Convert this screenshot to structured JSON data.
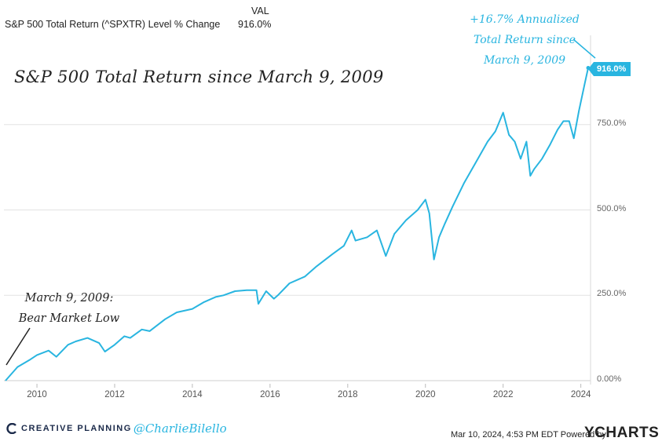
{
  "legend": {
    "series_name": "S&P 500 Total Return (^SPXTR) Level % Change",
    "column_header": "VAL",
    "value": "916.0%"
  },
  "title": "S&P 500 Total Return since March 9, 2009",
  "annotations": {
    "annualized": [
      "+16.7% Annualized",
      "Total Return since",
      "March 9, 2009"
    ],
    "bear_low": [
      "March 9, 2009:",
      "Bear Market Low"
    ]
  },
  "badge": "916.0%",
  "brand": {
    "name": "CREATIVE PLANNING",
    "handle": "@CharlieBilello"
  },
  "footer": {
    "timestamp": "Mar 10, 2024, 4:53 PM EDT Powered by",
    "logo": "YCHARTS"
  },
  "colors": {
    "line": "#29b5e0",
    "text": "#222222",
    "grid": "#e3e3e3"
  },
  "chart_data": {
    "type": "line",
    "series": [
      {
        "name": "S&P 500 Total Return (^SPXTR) Level % Change",
        "x": [
          2009.19,
          2009.5,
          2009.8,
          2010.0,
          2010.3,
          2010.5,
          2010.8,
          2011.0,
          2011.3,
          2011.6,
          2011.75,
          2012.0,
          2012.25,
          2012.4,
          2012.7,
          2012.9,
          2013.3,
          2013.6,
          2014.0,
          2014.3,
          2014.6,
          2014.8,
          2015.1,
          2015.4,
          2015.65,
          2015.7,
          2015.9,
          2016.1,
          2016.2,
          2016.5,
          2016.9,
          2017.2,
          2017.6,
          2017.9,
          2018.1,
          2018.2,
          2018.5,
          2018.75,
          2018.98,
          2019.2,
          2019.5,
          2019.8,
          2020.0,
          2020.1,
          2020.22,
          2020.35,
          2020.5,
          2020.7,
          2021.0,
          2021.3,
          2021.6,
          2021.8,
          2022.0,
          2022.15,
          2022.3,
          2022.45,
          2022.6,
          2022.7,
          2022.8,
          2023.0,
          2023.2,
          2023.4,
          2023.55,
          2023.7,
          2023.82,
          2023.95,
          2024.1,
          2024.19
        ],
        "y": [
          0,
          40,
          60,
          75,
          88,
          70,
          105,
          115,
          125,
          110,
          85,
          105,
          130,
          125,
          150,
          145,
          180,
          200,
          210,
          230,
          245,
          250,
          262,
          265,
          265,
          225,
          262,
          240,
          250,
          285,
          305,
          335,
          370,
          395,
          440,
          410,
          420,
          440,
          365,
          430,
          470,
          500,
          530,
          490,
          355,
          420,
          460,
          510,
          580,
          640,
          700,
          730,
          785,
          720,
          700,
          650,
          700,
          600,
          620,
          650,
          690,
          735,
          760,
          760,
          710,
          790,
          870,
          916
        ]
      }
    ],
    "x_ticks": [
      "2010",
      "2012",
      "2014",
      "2016",
      "2018",
      "2020",
      "2022",
      "2024"
    ],
    "y_ticks": [
      "0.00%",
      "250.0%",
      "500.0%",
      "750.0%"
    ],
    "ylim": [
      0,
      1000
    ],
    "xlim": [
      2009.15,
      2024.25
    ],
    "grid": "horizontal"
  }
}
